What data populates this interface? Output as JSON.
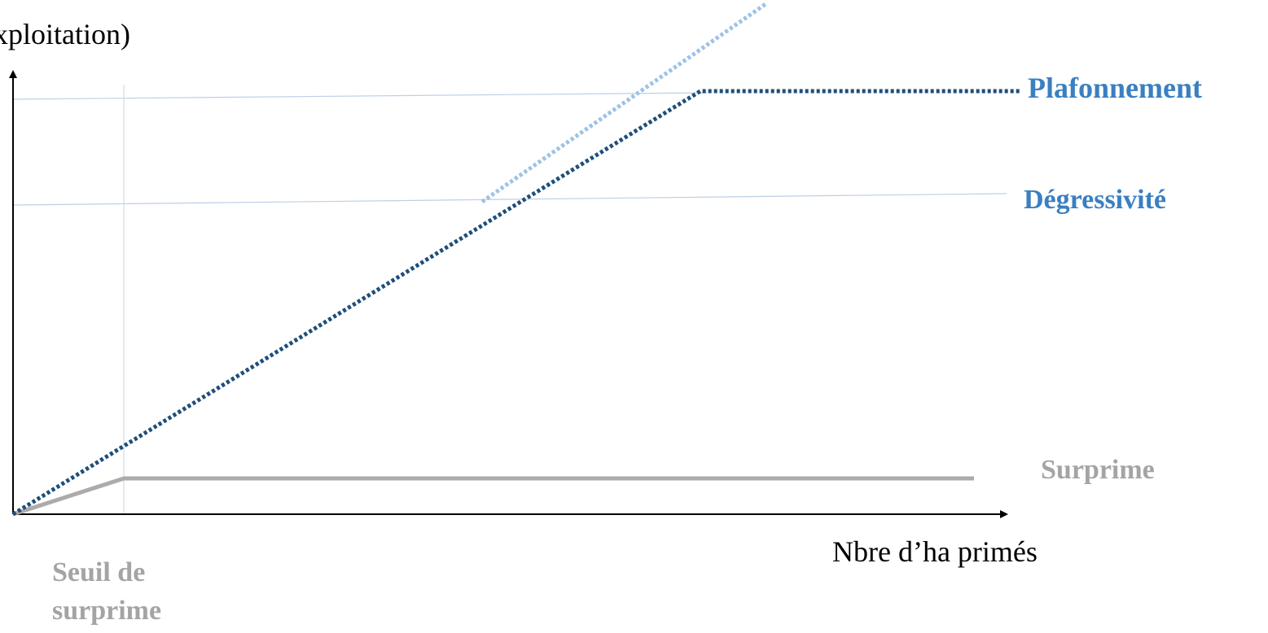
{
  "axes": {
    "y_label": "xploitation)",
    "x_label": "Nbre d’ha primés"
  },
  "labels": {
    "plafonnement": "Plafonnement",
    "degressivite": "Dégressivité",
    "surprime": "Surprime",
    "seuil_line1": "Seuil de",
    "seuil_line2": "surprime"
  },
  "colors": {
    "plafonnement_line": "#1f4e79",
    "degressivite_line": "#9dc3e6",
    "surprime_line": "#aeaaaa",
    "guide_line": "#bdd0e6",
    "label_blue": "#3a7fc1",
    "label_grey": "#a4a4a4",
    "axis": "#000000"
  }
}
